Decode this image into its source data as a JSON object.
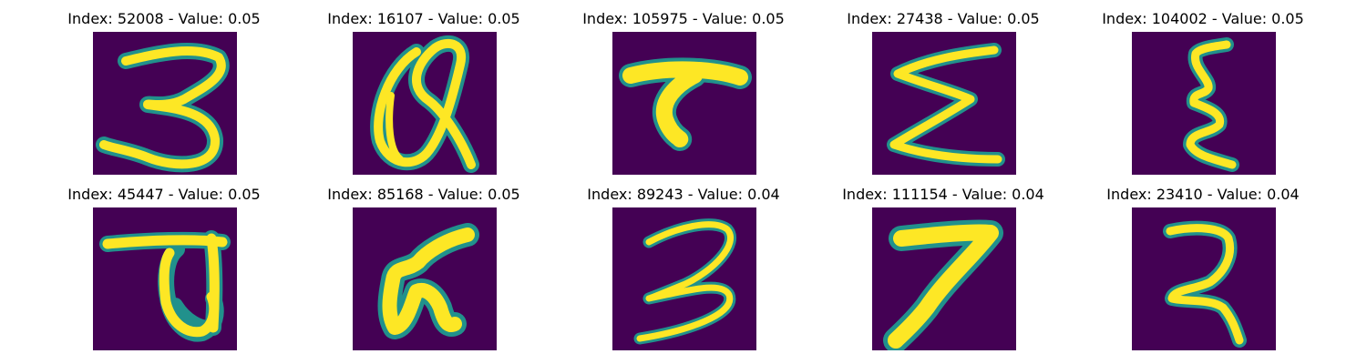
{
  "figure": {
    "panels": [
      {
        "title": "Index: 52008 - Value: 0.05",
        "glyph": "3"
      },
      {
        "title": "Index: 16107 - Value: 0.05",
        "glyph": "Q"
      },
      {
        "title": "Index: 105975 - Value: 0.05",
        "glyph": "T"
      },
      {
        "title": "Index: 27438 - Value: 0.05",
        "glyph": "Σ"
      },
      {
        "title": "Index: 104002 - Value: 0.05",
        "glyph": "ξ"
      },
      {
        "title": "Index: 45447 - Value: 0.05",
        "glyph": "ए"
      },
      {
        "title": "Index: 85168 - Value: 0.05",
        "glyph": "ज"
      },
      {
        "title": "Index: 89243 - Value: 0.04",
        "glyph": "3"
      },
      {
        "title": "Index: 111154 - Value: 0.04",
        "glyph": "7"
      },
      {
        "title": "Index: 23410 - Value: 0.04",
        "glyph": "ξ"
      }
    ],
    "colors": {
      "background": "#440154",
      "stroke_mid": "#21918c",
      "stroke_core": "#fde725"
    }
  }
}
